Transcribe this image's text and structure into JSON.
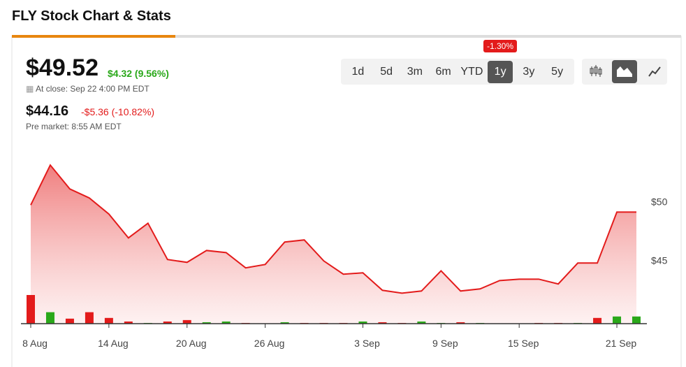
{
  "header": {
    "title": "FLY Stock Chart & Stats"
  },
  "quote": {
    "price": "$49.52",
    "change": "$4.32 (9.56%)",
    "close_note": "At close: Sep 22 4:00 PM EDT",
    "pre_price": "$44.16",
    "pre_change": "-$5.36 (-10.82%)",
    "pre_note": "Pre market: 8:55 AM EDT"
  },
  "ranges": {
    "options": [
      "1d",
      "5d",
      "3m",
      "6m",
      "YTD",
      "1y",
      "3y",
      "5y"
    ],
    "active": 5,
    "badge": "-1.30%"
  },
  "chart_data": {
    "type": "area",
    "categories": [
      "8 Aug",
      null,
      null,
      null,
      "14 Aug",
      null,
      null,
      null,
      "20 Aug",
      null,
      null,
      null,
      "26 Aug",
      null,
      null,
      null,
      null,
      "3 Sep",
      null,
      null,
      null,
      "9 Sep",
      null,
      null,
      null,
      "15 Sep",
      null,
      null,
      null,
      null,
      "21 Sep",
      null
    ],
    "series": [
      {
        "color": "#e31b1b",
        "values": [
          49.7,
          53.1,
          51.07,
          50.3,
          48.93,
          46.9,
          48.15,
          45.06,
          44.82,
          45.83,
          45.65,
          44.35,
          44.64,
          46.55,
          46.73,
          44.94,
          43.81,
          43.93,
          42.44,
          42.2,
          42.38,
          44.1,
          42.38,
          42.56,
          43.27,
          43.39,
          43.39,
          42.98,
          44.76,
          44.76,
          49.1,
          49.1
        ]
      }
    ],
    "volume": {
      "values": [
        40,
        16,
        7,
        16,
        8,
        3,
        1,
        3,
        5,
        2,
        3,
        1,
        0,
        2,
        1,
        1,
        1,
        3,
        2,
        1,
        3,
        1,
        2,
        1,
        0,
        0,
        1,
        1,
        1,
        8,
        10,
        10
      ],
      "colors": [
        "#e31b1b",
        "#2aa81a",
        "#e31b1b",
        "#e31b1b",
        "#e31b1b",
        "#e31b1b",
        "#2aa81a",
        "#e31b1b",
        "#e31b1b",
        "#2aa81a",
        "#2aa81a",
        "#e31b1b",
        "#e31b1b",
        "#2aa81a",
        "#e31b1b",
        "#e31b1b",
        "#e31b1b",
        "#2aa81a",
        "#e31b1b",
        "#e31b1b",
        "#2aa81a",
        "#2aa81a",
        "#e31b1b",
        "#2aa81a",
        "#e31b1b",
        "#e31b1b",
        "#e31b1b",
        "#e31b1b",
        "#2aa81a",
        "#e31b1b",
        "#2aa81a",
        "#2aa81a"
      ]
    },
    "ylim": [
      39.6,
      54.3
    ],
    "yticks": [
      {
        "value": 45,
        "label": "$45"
      },
      {
        "value": 50,
        "label": "$50"
      }
    ]
  }
}
